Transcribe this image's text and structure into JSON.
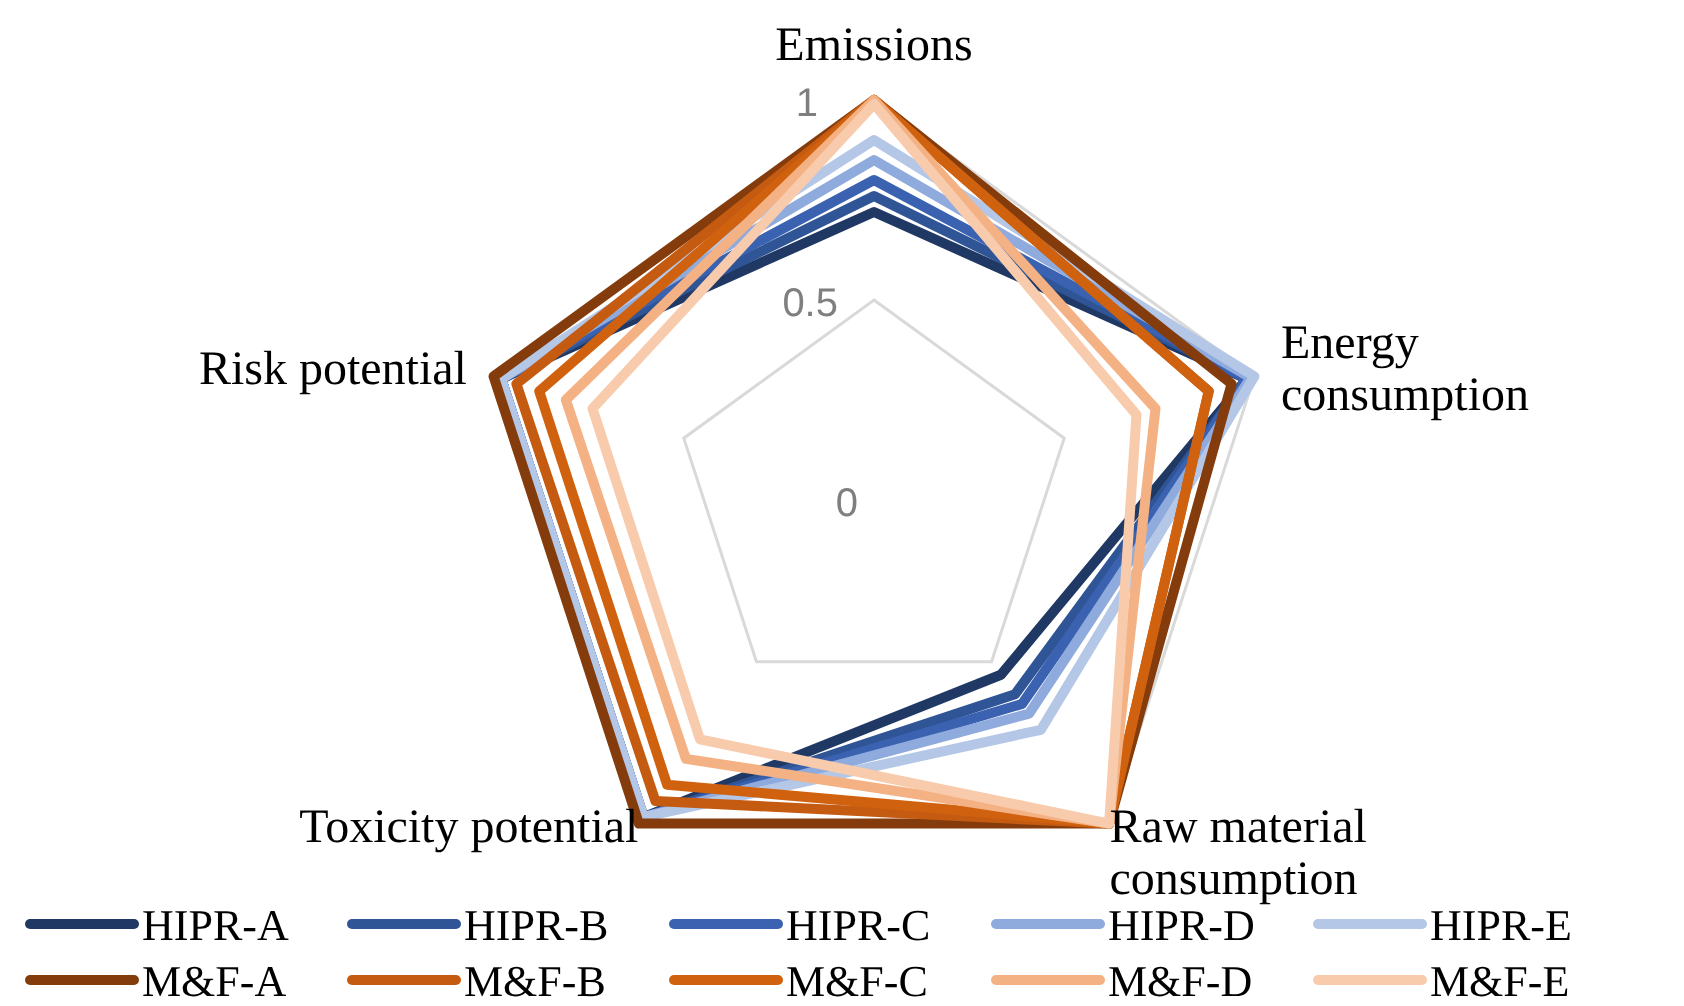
{
  "chart_data": {
    "type": "radar",
    "categories": [
      "Emissions",
      "Energy consumption",
      "Raw material consumption",
      "Toxicity potential",
      "Risk potential"
    ],
    "ylim": [
      0,
      1
    ],
    "yticks": [
      0,
      0.5,
      1
    ],
    "grid": true,
    "legend": "bottom",
    "series": [
      {
        "name": "HIPR-A",
        "color": "#203864",
        "values": [
          0.72,
          0.98,
          0.54,
          0.98,
          0.98
        ]
      },
      {
        "name": "HIPR-B",
        "color": "#2f5597",
        "values": [
          0.76,
          0.98,
          0.6,
          0.98,
          0.98
        ]
      },
      {
        "name": "HIPR-C",
        "color": "#3a62b0",
        "values": [
          0.8,
          0.98,
          0.63,
          0.98,
          0.98
        ]
      },
      {
        "name": "HIPR-D",
        "color": "#8faadc",
        "values": [
          0.85,
          0.99,
          0.66,
          0.98,
          0.98
        ]
      },
      {
        "name": "HIPR-E",
        "color": "#b4c7e7",
        "values": [
          0.9,
          1,
          0.71,
          0.98,
          0.98
        ]
      },
      {
        "name": "M&F-A",
        "color": "#843c0c",
        "values": [
          1,
          0.94,
          1,
          1,
          1
        ]
      },
      {
        "name": "M&F-B",
        "color": "#c55a11",
        "values": [
          1,
          0.88,
          1,
          0.93,
          0.94
        ]
      },
      {
        "name": "M&F-C",
        "color": "#d0620f",
        "values": [
          1,
          0.88,
          1,
          0.88,
          0.88
        ]
      },
      {
        "name": "M&F-D",
        "color": "#f4b183",
        "values": [
          1,
          0.74,
          1,
          0.8,
          0.81
        ]
      },
      {
        "name": "M&F-E",
        "color": "#f8cbad",
        "values": [
          0.99,
          0.69,
          1,
          0.74,
          0.74
        ]
      }
    ]
  }
}
